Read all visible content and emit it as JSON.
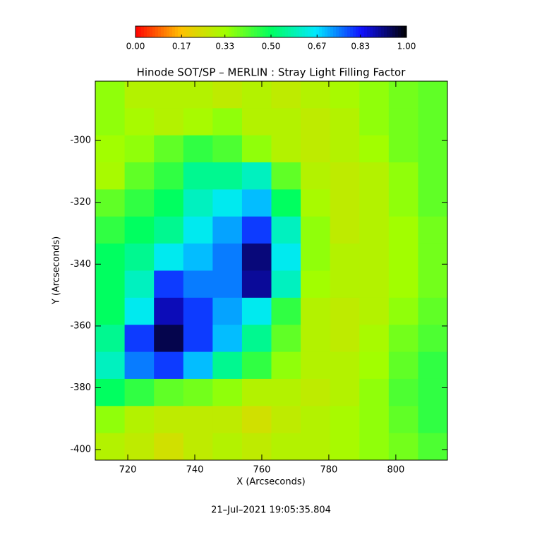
{
  "chart_data": {
    "type": "heatmap",
    "title": "Hinode SOT/SP – MERLIN : Stray Light Filling Factor",
    "xlabel": "X (Arcseconds)",
    "ylabel": "Y (Arcseconds)",
    "footer": "21–Jul–2021 19:05:35.804",
    "xlim": [
      710.3,
      815.4
    ],
    "ylim": [
      -403.4,
      -280.8
    ],
    "xticks": [
      720,
      740,
      760,
      780,
      800
    ],
    "yticks": [
      -300,
      -320,
      -340,
      -360,
      -380,
      -400
    ],
    "clim": [
      0,
      1
    ],
    "cticks": [
      {
        "value": 0,
        "label": "0.00"
      },
      {
        "value": 0.17,
        "label": "0.17"
      },
      {
        "value": 0.33,
        "label": "0.33"
      },
      {
        "value": 0.5,
        "label": "0.50"
      },
      {
        "value": 0.67,
        "label": "0.67"
      },
      {
        "value": 0.83,
        "label": "0.83"
      },
      {
        "value": 1,
        "label": "1.00"
      }
    ],
    "colormap": [
      "#ff0000",
      "#ffc000",
      "#a0ff00",
      "#00ff60",
      "#00e8ff",
      "#1010ff",
      "#000000"
    ],
    "z": [
      [
        0.35,
        0.3,
        0.3,
        0.3,
        0.28,
        0.3,
        0.28,
        0.3,
        0.32,
        0.35,
        0.38,
        0.4
      ],
      [
        0.35,
        0.32,
        0.3,
        0.32,
        0.35,
        0.3,
        0.3,
        0.28,
        0.3,
        0.35,
        0.38,
        0.4
      ],
      [
        0.33,
        0.35,
        0.4,
        0.45,
        0.42,
        0.35,
        0.3,
        0.28,
        0.3,
        0.33,
        0.38,
        0.4
      ],
      [
        0.32,
        0.4,
        0.45,
        0.55,
        0.55,
        0.6,
        0.4,
        0.3,
        0.28,
        0.3,
        0.35,
        0.4
      ],
      [
        0.4,
        0.45,
        0.5,
        0.6,
        0.65,
        0.7,
        0.5,
        0.32,
        0.28,
        0.3,
        0.35,
        0.4
      ],
      [
        0.45,
        0.5,
        0.55,
        0.65,
        0.72,
        0.8,
        0.6,
        0.35,
        0.28,
        0.3,
        0.33,
        0.38
      ],
      [
        0.5,
        0.55,
        0.65,
        0.7,
        0.75,
        0.92,
        0.65,
        0.35,
        0.3,
        0.3,
        0.33,
        0.38
      ],
      [
        0.5,
        0.6,
        0.8,
        0.75,
        0.75,
        0.9,
        0.6,
        0.33,
        0.3,
        0.3,
        0.33,
        0.38
      ],
      [
        0.5,
        0.65,
        0.88,
        0.8,
        0.72,
        0.65,
        0.45,
        0.3,
        0.28,
        0.3,
        0.35,
        0.4
      ],
      [
        0.55,
        0.8,
        0.95,
        0.8,
        0.7,
        0.55,
        0.4,
        0.3,
        0.28,
        0.32,
        0.38,
        0.42
      ],
      [
        0.6,
        0.75,
        0.8,
        0.7,
        0.55,
        0.45,
        0.35,
        0.3,
        0.3,
        0.33,
        0.4,
        0.45
      ],
      [
        0.5,
        0.45,
        0.4,
        0.38,
        0.35,
        0.3,
        0.3,
        0.28,
        0.3,
        0.35,
        0.42,
        0.45
      ],
      [
        0.35,
        0.3,
        0.28,
        0.28,
        0.28,
        0.25,
        0.28,
        0.3,
        0.32,
        0.35,
        0.4,
        0.45
      ],
      [
        0.3,
        0.28,
        0.25,
        0.28,
        0.3,
        0.28,
        0.3,
        0.3,
        0.32,
        0.35,
        0.38,
        0.42
      ]
    ]
  }
}
